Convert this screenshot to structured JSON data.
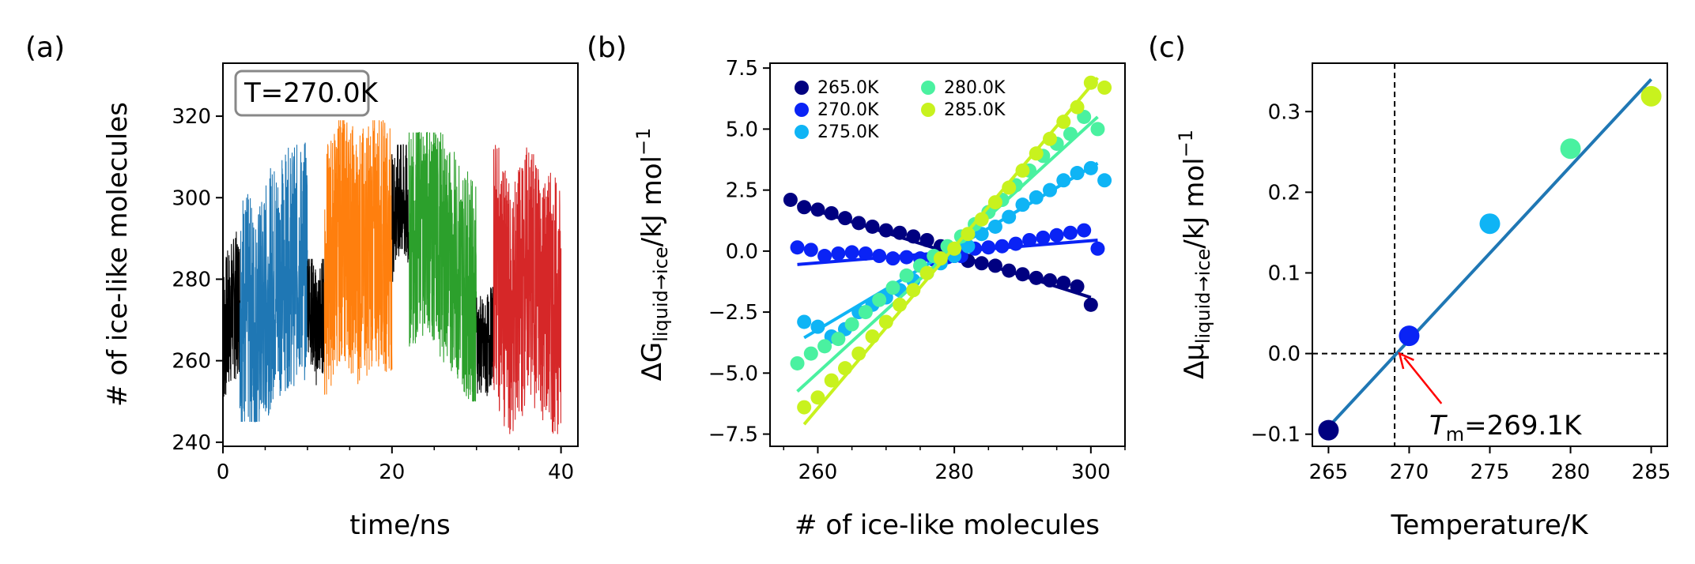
{
  "chart_data": [
    {
      "panel": "(a)",
      "type": "line",
      "xlabel": "time/ns",
      "ylabel": "# of ice-like molecules",
      "xlim": [
        0,
        42
      ],
      "ylim": [
        239,
        333
      ],
      "xticks": [
        0,
        20,
        40
      ],
      "yticks": [
        240,
        260,
        280,
        300,
        320
      ],
      "annotation": "T=270.0K",
      "series": [
        {
          "color": "#000000",
          "x": [
            0.0,
            1.0,
            2.0
          ],
          "band": [
            250,
            293
          ],
          "trend": [
            266,
            272,
            275
          ]
        },
        {
          "color": "#1f77b4",
          "x": [
            2.0,
            4.0,
            6.0,
            8.0,
            10.0
          ],
          "band": [
            245,
            315
          ],
          "trend": [
            275,
            268,
            280,
            283,
            285
          ]
        },
        {
          "color": "#000000",
          "x": [
            10.0,
            11.0,
            12.0
          ],
          "band": [
            250,
            285
          ],
          "trend": [
            278,
            268,
            272
          ]
        },
        {
          "color": "#ff7f0e",
          "x": [
            12.0,
            14.0,
            16.0,
            18.0,
            20.0
          ],
          "band": [
            245,
            319
          ],
          "trend": [
            280,
            292,
            285,
            290,
            288
          ]
        },
        {
          "color": "#000000",
          "x": [
            20.0,
            21.0,
            22.0
          ],
          "band": [
            275,
            313
          ],
          "trend": [
            295,
            300,
            297
          ]
        },
        {
          "color": "#2ca02c",
          "x": [
            22.0,
            24.0,
            26.0,
            28.0,
            30.0
          ],
          "band": [
            250,
            316
          ],
          "trend": [
            290,
            295,
            288,
            282,
            275
          ]
        },
        {
          "color": "#000000",
          "x": [
            30.0,
            31.0,
            32.0
          ],
          "band": [
            248,
            278
          ],
          "trend": [
            265,
            262,
            268
          ]
        },
        {
          "color": "#d62728",
          "x": [
            32.0,
            34.0,
            36.0,
            38.0,
            40.0
          ],
          "band": [
            242,
            318
          ],
          "trend": [
            285,
            270,
            282,
            276,
            272
          ]
        }
      ]
    },
    {
      "panel": "(b)",
      "type": "scatter",
      "xlabel": "# of ice-like molecules",
      "ylabel": "ΔG",
      "ylabel_sub": "liquid→ice",
      "ylabel_units": "/kJ mol",
      "ylabel_sup": "−1",
      "xlim": [
        253,
        305
      ],
      "ylim": [
        -8,
        7.7
      ],
      "xticks": [
        260,
        280,
        300
      ],
      "yticks": [
        -7.5,
        -5.0,
        -2.5,
        0.0,
        2.5,
        5.0,
        7.5
      ],
      "ytick_labels": [
        "−7.5",
        "−5.0",
        "−2.5",
        "0.0",
        "2.5",
        "5.0",
        "7.5"
      ],
      "legend_placement": "top-left",
      "series": [
        {
          "name": "265.0K",
          "color": "#000080",
          "x": [
            256,
            258,
            260,
            262,
            264,
            266,
            268,
            270,
            272,
            274,
            276,
            278,
            280,
            282,
            284,
            286,
            288,
            290,
            292,
            294,
            296,
            298,
            300
          ],
          "y": [
            2.1,
            1.8,
            1.7,
            1.55,
            1.35,
            1.15,
            1.0,
            0.85,
            0.75,
            0.6,
            0.45,
            0.2,
            -0.2,
            -0.4,
            -0.5,
            -0.6,
            -0.8,
            -0.95,
            -1.1,
            -1.2,
            -1.3,
            -1.45,
            -2.2
          ],
          "fit": [
            [
              257,
              1.9
            ],
            [
              300,
              -1.9
            ]
          ]
        },
        {
          "name": "270.0K",
          "color": "#0a23f5",
          "x": [
            257,
            259,
            261,
            263,
            265,
            267,
            269,
            271,
            273,
            275,
            277,
            279,
            281,
            283,
            285,
            287,
            289,
            291,
            293,
            295,
            297,
            299,
            301
          ],
          "y": [
            0.15,
            0.05,
            -0.2,
            -0.1,
            -0.05,
            -0.1,
            -0.2,
            -0.3,
            -0.25,
            -0.3,
            -0.35,
            -0.25,
            -0.2,
            0.1,
            0.15,
            0.2,
            0.3,
            0.45,
            0.55,
            0.65,
            0.75,
            0.85,
            0.1
          ],
          "fit": [
            [
              257,
              -0.55
            ],
            [
              301,
              0.45
            ]
          ]
        },
        {
          "name": "275.0K",
          "color": "#0fb4f5",
          "x": [
            258,
            260,
            262,
            264,
            266,
            268,
            270,
            272,
            274,
            276,
            278,
            280,
            282,
            284,
            286,
            288,
            290,
            292,
            294,
            296,
            298,
            300,
            302
          ],
          "y": [
            -2.9,
            -3.1,
            -3.5,
            -3.2,
            -2.5,
            -2.2,
            -1.9,
            -1.6,
            -1.2,
            -0.9,
            -0.5,
            -0.2,
            0.2,
            0.7,
            1.0,
            1.4,
            1.9,
            2.2,
            2.5,
            2.9,
            3.2,
            3.4,
            2.9
          ],
          "fit": [
            [
              258,
              -3.55
            ],
            [
              301,
              3.6
            ]
          ]
        },
        {
          "name": "280.0K",
          "color": "#4af1a0",
          "x": [
            257,
            259,
            261,
            263,
            265,
            267,
            269,
            271,
            273,
            275,
            277,
            279,
            281,
            283,
            285,
            287,
            289,
            291,
            293,
            295,
            297,
            299,
            301
          ],
          "y": [
            -4.6,
            -4.2,
            -3.9,
            -3.6,
            -3.0,
            -2.5,
            -2.0,
            -1.5,
            -1.0,
            -0.6,
            -0.2,
            0.2,
            0.6,
            1.1,
            1.6,
            2.1,
            2.7,
            3.3,
            3.9,
            4.4,
            4.8,
            5.5,
            5.0
          ],
          "fit": [
            [
              257,
              -5.75
            ],
            [
              301,
              5.5
            ]
          ]
        },
        {
          "name": "285.0K",
          "color": "#c8f21e",
          "x": [
            258,
            260,
            262,
            264,
            266,
            268,
            270,
            272,
            274,
            276,
            278,
            280,
            282,
            284,
            286,
            288,
            290,
            292,
            294,
            296,
            298,
            300,
            302
          ],
          "y": [
            -6.4,
            -6.0,
            -5.3,
            -4.8,
            -4.2,
            -3.5,
            -2.9,
            -2.2,
            -1.6,
            -0.9,
            -0.3,
            0.1,
            0.7,
            1.3,
            2.0,
            2.6,
            3.3,
            4.0,
            4.6,
            5.3,
            5.9,
            6.9,
            6.7
          ],
          "fit": [
            [
              258,
              -7.1
            ],
            [
              301,
              7.1
            ]
          ]
        }
      ]
    },
    {
      "panel": "(c)",
      "type": "scatter",
      "xlabel": "Temperature/K",
      "ylabel": "Δμ",
      "ylabel_sub": "liquid→ice",
      "ylabel_units": "/kJ mol",
      "ylabel_sup": "−1",
      "xlim": [
        264,
        286
      ],
      "ylim": [
        -0.115,
        0.36
      ],
      "xticks": [
        265,
        270,
        275,
        280,
        285
      ],
      "yticks": [
        -0.1,
        0.0,
        0.1,
        0.2,
        0.3
      ],
      "ytick_labels": [
        "−0.1",
        "0.0",
        "0.1",
        "0.2",
        "0.3"
      ],
      "points": [
        {
          "x": 265,
          "y": -0.095,
          "color": "#000080"
        },
        {
          "x": 270,
          "y": 0.022,
          "color": "#0a23f5"
        },
        {
          "x": 275,
          "y": 0.161,
          "color": "#0fb4f5"
        },
        {
          "x": 280,
          "y": 0.254,
          "color": "#4af1a0"
        },
        {
          "x": 285,
          "y": 0.319,
          "color": "#c8f21e"
        }
      ],
      "fit": {
        "color": "#1f77b4",
        "from": [
          265,
          -0.091
        ],
        "to": [
          285,
          0.34
        ]
      },
      "hline": 0.0,
      "vline": 269.1,
      "annotation": {
        "prefix": "T",
        "sub": "m",
        "value": "=269.1K",
        "arrow_color": "#ff0000",
        "arrow_target": [
          269.4,
          0.0
        ],
        "text_anchor_data": [
          271.0,
          -0.095
        ]
      }
    }
  ],
  "panels": {
    "a": "(a)",
    "b": "(b)",
    "c": "(c)"
  }
}
